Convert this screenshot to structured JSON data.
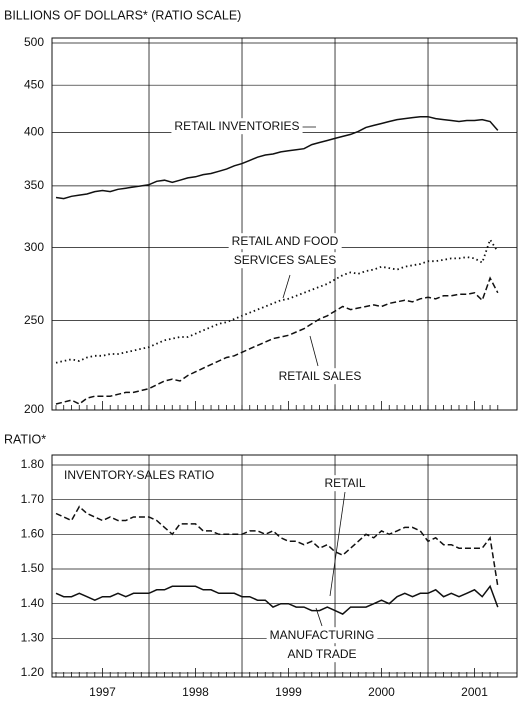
{
  "chart_data": [
    {
      "type": "line",
      "y_label": "BILLIONS OF DOLLARS* (RATIO SCALE)",
      "log_scale": true,
      "ylim": [
        200,
        500
      ],
      "yticks": [
        200,
        250,
        300,
        350,
        400,
        450,
        500
      ],
      "xlim": [
        1997,
        2001.833
      ],
      "x": [
        1997,
        1997.083,
        1997.167,
        1997.25,
        1997.333,
        1997.417,
        1997.5,
        1997.583,
        1997.667,
        1997.75,
        1997.833,
        1997.917,
        1998,
        1998.083,
        1998.167,
        1998.25,
        1998.333,
        1998.417,
        1998.5,
        1998.583,
        1998.667,
        1998.75,
        1998.833,
        1998.917,
        1999,
        1999.083,
        1999.167,
        1999.25,
        1999.333,
        1999.417,
        1999.5,
        1999.583,
        1999.667,
        1999.75,
        1999.833,
        1999.917,
        2000,
        2000.083,
        2000.167,
        2000.25,
        2000.333,
        2000.417,
        2000.5,
        2000.583,
        2000.667,
        2000.75,
        2000.833,
        2000.917,
        2001,
        2001.083,
        2001.167,
        2001.25,
        2001.333,
        2001.417,
        2001.5,
        2001.583,
        2001.667,
        2001.75
      ],
      "series": [
        {
          "name": "RETAIL INVENTORIES",
          "color": "#111111",
          "style": "solid",
          "values": [
            340,
            339,
            341,
            342,
            343,
            345,
            346,
            345,
            347,
            348,
            349,
            350,
            351,
            354,
            355,
            353,
            355,
            357,
            358,
            360,
            361,
            363,
            365,
            368,
            370,
            373,
            376,
            378,
            379,
            381,
            382,
            383,
            384,
            388,
            390,
            392,
            394,
            396,
            398,
            401,
            405,
            407,
            409,
            411,
            413,
            414,
            415,
            416,
            416,
            414,
            413,
            412,
            411,
            412,
            412,
            413,
            411,
            402
          ]
        },
        {
          "name": "RETAIL AND FOOD SERVICES SALES",
          "color": "#111111",
          "style": "dotted",
          "values": [
            225,
            226,
            227,
            226,
            228,
            229,
            229,
            230,
            230,
            231,
            232,
            233,
            234,
            236,
            238,
            239,
            240,
            240,
            242,
            244,
            246,
            248,
            249,
            251,
            253,
            255,
            257,
            259,
            261,
            263,
            264,
            266,
            268,
            270,
            272,
            274,
            277,
            280,
            282,
            281,
            283,
            284,
            286,
            285,
            284,
            286,
            287,
            288,
            290,
            290,
            291,
            292,
            292,
            293,
            292,
            289,
            306,
            297
          ]
        },
        {
          "name": "RETAIL SALES",
          "color": "#111111",
          "style": "dashed",
          "values": [
            203,
            204,
            205,
            203,
            206,
            207,
            207,
            207,
            208,
            209,
            209,
            210,
            211,
            213,
            215,
            216,
            215,
            218,
            220,
            222,
            224,
            226,
            228,
            229,
            231,
            233,
            235,
            237,
            239,
            240,
            241,
            243,
            245,
            248,
            251,
            253,
            256,
            259,
            257,
            258,
            259,
            260,
            259,
            261,
            262,
            263,
            262,
            264,
            265,
            264,
            266,
            266,
            267,
            267,
            268,
            263,
            278,
            268
          ]
        }
      ],
      "annotations": [
        [
          "RETAIL INVENTORIES"
        ],
        [
          "RETAIL AND FOOD",
          "SERVICES SALES"
        ],
        [
          "RETAIL SALES"
        ]
      ]
    },
    {
      "type": "line",
      "y_label": "RATIO*",
      "title": "INVENTORY-SALES RATIO",
      "ylim": [
        1.2,
        1.8
      ],
      "yticks": [
        {
          "value": 1.2,
          "label": "1.20"
        },
        {
          "value": 1.3,
          "label": "1.30"
        },
        {
          "value": 1.4,
          "label": "1.40"
        },
        {
          "value": 1.5,
          "label": "1.50"
        },
        {
          "value": 1.6,
          "label": "1.60"
        },
        {
          "value": 1.7,
          "label": "1.70"
        },
        {
          "value": 1.8,
          "label": "1.80"
        }
      ],
      "xlim": [
        1997,
        2001.833
      ],
      "xticks": [
        {
          "value": 1997.5,
          "label": "1997"
        },
        {
          "value": 1998.5,
          "label": "1998"
        },
        {
          "value": 1999.5,
          "label": "1999"
        },
        {
          "value": 2000.5,
          "label": "2000"
        },
        {
          "value": 2001.5,
          "label": "2001"
        }
      ],
      "x": [
        1997,
        1997.083,
        1997.167,
        1997.25,
        1997.333,
        1997.417,
        1997.5,
        1997.583,
        1997.667,
        1997.75,
        1997.833,
        1997.917,
        1998,
        1998.083,
        1998.167,
        1998.25,
        1998.333,
        1998.417,
        1998.5,
        1998.583,
        1998.667,
        1998.75,
        1998.833,
        1998.917,
        1999,
        1999.083,
        1999.167,
        1999.25,
        1999.333,
        1999.417,
        1999.5,
        1999.583,
        1999.667,
        1999.75,
        1999.833,
        1999.917,
        2000,
        2000.083,
        2000.167,
        2000.25,
        2000.333,
        2000.417,
        2000.5,
        2000.583,
        2000.667,
        2000.75,
        2000.833,
        2000.917,
        2001,
        2001.083,
        2001.167,
        2001.25,
        2001.333,
        2001.417,
        2001.5,
        2001.583,
        2001.667,
        2001.75
      ],
      "series": [
        {
          "name": "RETAIL",
          "color": "#111111",
          "style": "dashed",
          "values": [
            1.66,
            1.65,
            1.64,
            1.68,
            1.66,
            1.65,
            1.64,
            1.65,
            1.64,
            1.64,
            1.65,
            1.65,
            1.65,
            1.64,
            1.62,
            1.6,
            1.63,
            1.63,
            1.63,
            1.61,
            1.61,
            1.6,
            1.6,
            1.6,
            1.6,
            1.61,
            1.61,
            1.6,
            1.61,
            1.59,
            1.58,
            1.58,
            1.57,
            1.58,
            1.56,
            1.57,
            1.55,
            1.54,
            1.56,
            1.58,
            1.6,
            1.59,
            1.61,
            1.6,
            1.61,
            1.62,
            1.62,
            1.61,
            1.58,
            1.59,
            1.57,
            1.57,
            1.56,
            1.56,
            1.56,
            1.56,
            1.59,
            1.45
          ]
        },
        {
          "name": "MANUFACTURING AND TRADE",
          "color": "#111111",
          "style": "solid",
          "values": [
            1.43,
            1.42,
            1.42,
            1.43,
            1.42,
            1.41,
            1.42,
            1.42,
            1.43,
            1.42,
            1.43,
            1.43,
            1.43,
            1.44,
            1.44,
            1.45,
            1.45,
            1.45,
            1.45,
            1.44,
            1.44,
            1.43,
            1.43,
            1.43,
            1.42,
            1.42,
            1.41,
            1.41,
            1.39,
            1.4,
            1.4,
            1.39,
            1.39,
            1.38,
            1.38,
            1.39,
            1.38,
            1.37,
            1.39,
            1.39,
            1.39,
            1.4,
            1.41,
            1.4,
            1.42,
            1.43,
            1.42,
            1.43,
            1.43,
            1.44,
            1.42,
            1.43,
            1.42,
            1.43,
            1.44,
            1.42,
            1.45,
            1.39
          ]
        }
      ],
      "annotations": [
        [
          "RETAIL"
        ],
        [
          "MANUFACTURING",
          "AND TRADE"
        ]
      ]
    }
  ]
}
